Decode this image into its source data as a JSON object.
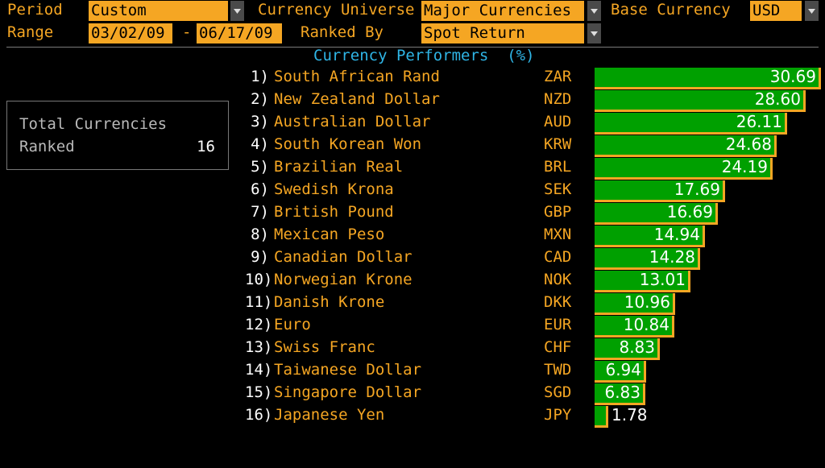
{
  "header": {
    "period_label": "Period",
    "period_value": "Custom",
    "universe_label": "Currency Universe",
    "universe_value": "Major Currencies",
    "base_label": "Base Currency",
    "base_value": "USD",
    "range_label": "Range",
    "range_start": "03/02/09",
    "range_dash": "-",
    "range_end": "06/17/09",
    "ranked_by_label": "Ranked By",
    "ranked_by_value": "Spot Return"
  },
  "title": "Currency Performers  (%)",
  "summary": {
    "line1": "Total Currencies",
    "line2": "Ranked",
    "count": "16"
  },
  "colors": {
    "accent": "#f5a623",
    "bar": "#00a000",
    "title": "#2fb5e6",
    "background": "#000000"
  },
  "chart_data": {
    "type": "bar",
    "orientation": "horizontal",
    "title": "Currency Performers  (%)",
    "categories": [
      "South African Rand",
      "New Zealand Dollar",
      "Australian Dollar",
      "South Korean Won",
      "Brazilian Real",
      "Swedish Krona",
      "British Pound",
      "Mexican Peso",
      "Canadian Dollar",
      "Norwegian Krone",
      "Danish Krone",
      "Euro",
      "Swiss Franc",
      "Taiwanese Dollar",
      "Singapore Dollar",
      "Japanese Yen"
    ],
    "codes": [
      "ZAR",
      "NZD",
      "AUD",
      "KRW",
      "BRL",
      "SEK",
      "GBP",
      "MXN",
      "CAD",
      "NOK",
      "DKK",
      "EUR",
      "CHF",
      "TWD",
      "SGD",
      "JPY"
    ],
    "ranks": [
      "1)",
      "2)",
      "3)",
      "4)",
      "5)",
      "6)",
      "7)",
      "8)",
      "9)",
      "10)",
      "11)",
      "12)",
      "13)",
      "14)",
      "15)",
      "16)"
    ],
    "values": [
      30.69,
      28.6,
      26.11,
      24.68,
      24.19,
      17.69,
      16.69,
      14.94,
      14.28,
      13.01,
      10.96,
      10.84,
      8.83,
      6.94,
      6.83,
      1.78
    ],
    "labels": [
      "30.69",
      "28.60",
      "26.11",
      "24.68",
      "24.19",
      "17.69",
      "16.69",
      "14.94",
      "14.28",
      "13.01",
      "10.96",
      "10.84",
      "8.83",
      "6.94",
      "6.83",
      "1.78"
    ],
    "xlim": [
      0,
      30.69
    ]
  }
}
